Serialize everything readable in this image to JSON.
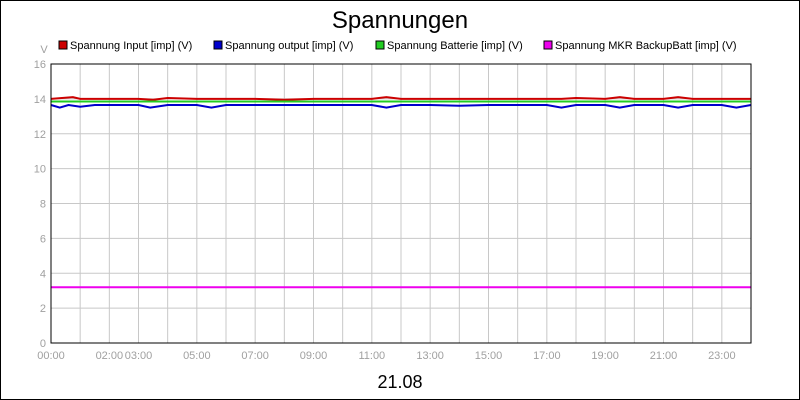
{
  "chart_data": {
    "type": "line",
    "title": "Spannungen",
    "subtitle": "21.08",
    "ylabel": "V",
    "xlabel": "",
    "ylim": [
      0,
      16
    ],
    "xlim_hours": [
      0,
      24
    ],
    "grid": true,
    "legend_position": "top",
    "yticks": [
      0,
      2,
      4,
      6,
      8,
      10,
      12,
      14,
      16
    ],
    "xticks": [
      {
        "hour": 0,
        "label": "00:00"
      },
      {
        "hour": 2,
        "label": "02:00"
      },
      {
        "hour": 3,
        "label": "03:00"
      },
      {
        "hour": 5,
        "label": "05:00"
      },
      {
        "hour": 7,
        "label": "07:00"
      },
      {
        "hour": 9,
        "label": "09:00"
      },
      {
        "hour": 11,
        "label": "11:00"
      },
      {
        "hour": 13,
        "label": "13:00"
      },
      {
        "hour": 15,
        "label": "15:00"
      },
      {
        "hour": 17,
        "label": "17:00"
      },
      {
        "hour": 19,
        "label": "19:00"
      },
      {
        "hour": 21,
        "label": "21:00"
      },
      {
        "hour": 23,
        "label": "23:00"
      }
    ],
    "series": [
      {
        "name": "Spannung Input [imp] (V)",
        "color": "#cc0000",
        "x": [
          0,
          0.75,
          1,
          2,
          3,
          3.5,
          4,
          5,
          5.5,
          6,
          7,
          8,
          9,
          10,
          11,
          11.5,
          12,
          13,
          14,
          15,
          16,
          17,
          17.5,
          18,
          19,
          19.5,
          20,
          21,
          21.5,
          22,
          23,
          23.5,
          24
        ],
        "y": [
          14.0,
          14.1,
          14.0,
          14.0,
          14.0,
          13.95,
          14.05,
          14.0,
          14.0,
          14.0,
          14.0,
          13.95,
          14.0,
          14.0,
          14.0,
          14.1,
          14.0,
          14.0,
          14.0,
          14.0,
          14.0,
          14.0,
          14.0,
          14.05,
          14.0,
          14.1,
          14.0,
          14.0,
          14.1,
          14.0,
          14.0,
          14.0,
          14.0
        ]
      },
      {
        "name": "Spannung output [imp] (V)",
        "color": "#0000cc",
        "x": [
          0,
          0.3,
          0.6,
          1,
          1.5,
          2,
          3,
          3.4,
          4,
          5,
          5.5,
          6,
          7,
          8,
          9,
          10,
          11,
          11.5,
          12,
          13,
          14,
          15,
          16,
          17,
          17.5,
          18,
          19,
          19.5,
          20,
          21,
          21.5,
          22,
          23,
          23.5,
          24
        ],
        "y": [
          13.65,
          13.5,
          13.65,
          13.55,
          13.65,
          13.65,
          13.65,
          13.5,
          13.65,
          13.65,
          13.5,
          13.65,
          13.65,
          13.65,
          13.65,
          13.65,
          13.65,
          13.5,
          13.65,
          13.65,
          13.6,
          13.65,
          13.65,
          13.65,
          13.5,
          13.65,
          13.65,
          13.5,
          13.65,
          13.65,
          13.5,
          13.65,
          13.65,
          13.5,
          13.65
        ]
      },
      {
        "name": "Spannung Batterie [imp] (V)",
        "color": "#22cc22",
        "x": [
          0,
          6,
          12,
          18,
          24
        ],
        "y": [
          13.85,
          13.85,
          13.85,
          13.85,
          13.85
        ]
      },
      {
        "name": "Spannung MKR BackupBatt [imp] (V)",
        "color": "#ee00ee",
        "x": [
          0,
          6,
          12,
          18,
          24
        ],
        "y": [
          3.2,
          3.2,
          3.2,
          3.2,
          3.2
        ]
      }
    ]
  }
}
